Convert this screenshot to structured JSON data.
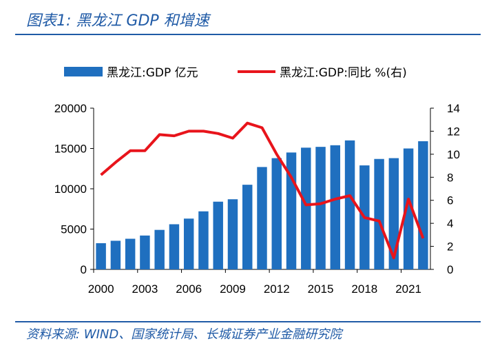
{
  "header": {
    "title": "图表1:  黑龙江 GDP 和增速"
  },
  "footer": {
    "source": "资料来源:  WIND、国家统计局、长城证券产业金融研究院"
  },
  "colors": {
    "bar": "#1f6fbf",
    "line": "#e8141b",
    "accent": "#1f5aa6"
  },
  "chart_data": {
    "type": "bar",
    "title": "",
    "x": [
      2000,
      2001,
      2002,
      2003,
      2004,
      2005,
      2006,
      2007,
      2008,
      2009,
      2010,
      2011,
      2012,
      2013,
      2014,
      2015,
      2016,
      2017,
      2018,
      2019,
      2020,
      2021,
      2022
    ],
    "x_tick_labels": [
      "2000",
      "2003",
      "2006",
      "2009",
      "2012",
      "2015",
      "2018",
      "2021"
    ],
    "x_ticks": [
      2000,
      2003,
      2006,
      2009,
      2012,
      2015,
      2018,
      2021
    ],
    "series": [
      {
        "name": "黑龙江:GDP 亿元",
        "type": "bar",
        "axis": "left",
        "values": [
          3250,
          3550,
          3800,
          4200,
          4900,
          5600,
          6300,
          7200,
          8400,
          8700,
          10500,
          12700,
          13800,
          14500,
          15100,
          15200,
          15400,
          16000,
          12900,
          13700,
          13800,
          15000,
          15900
        ]
      },
      {
        "name": "黑龙江:GDP:同比 %(右)",
        "type": "line",
        "axis": "right",
        "values": [
          8.2,
          9.3,
          10.3,
          10.3,
          11.7,
          11.6,
          12.0,
          12.0,
          11.8,
          11.4,
          12.7,
          12.3,
          10.0,
          8.0,
          5.6,
          5.7,
          6.1,
          6.4,
          4.5,
          4.2,
          1.0,
          6.1,
          2.7
        ]
      }
    ],
    "y_left": {
      "lim": [
        0,
        20000
      ],
      "ticks": [
        0,
        5000,
        10000,
        15000,
        20000
      ]
    },
    "y_right": {
      "lim": [
        0,
        14
      ],
      "ticks": [
        0,
        2,
        4,
        6,
        8,
        10,
        12,
        14
      ]
    },
    "legend": {
      "position": "top"
    },
    "grid": false
  }
}
